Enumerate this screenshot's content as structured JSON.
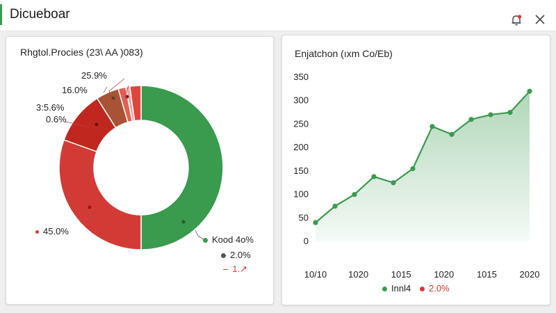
{
  "window": {
    "title": "Dicueboar",
    "accent_color": "#3a9a4e"
  },
  "toolbar": {
    "bell_icon": "bell-icon",
    "close_icon": "close-icon"
  },
  "donut_card": {
    "title": "Rhgtol.Procies (23\\ AA )083)",
    "labels": [
      "25.9%",
      "16.0%",
      "3:5.6%",
      "0.6%",
      "45.0%"
    ],
    "legend": [
      {
        "label": "Kood 4o%",
        "color": "#3a9a4e"
      },
      {
        "label": "2.0%",
        "color": "#555555"
      },
      {
        "label": "1.",
        "color": "#d23b35",
        "arrow": "↗"
      }
    ]
  },
  "line_card": {
    "title": "Enjatchon (ıxm Co/Eb)",
    "legend": [
      {
        "label": "Innl4",
        "color": "#3a9a4e"
      },
      {
        "label": "2.0%",
        "color": "#d23b35"
      }
    ]
  },
  "chart_data": [
    {
      "type": "pie",
      "title": "Rhgtol.Procies (23\\ AA )083)",
      "slices": [
        {
          "label": "Kood 4o%",
          "value": 50.0,
          "color": "#3a9a4e"
        },
        {
          "label": "45.0%",
          "value": 30.5,
          "color": "#d23b35"
        },
        {
          "label": "3:5.6%",
          "value": 10.5,
          "color": "#c0281f"
        },
        {
          "label": "16.0%",
          "value": 4.5,
          "color": "#a85336"
        },
        {
          "label": "25.9%",
          "value": 1.5,
          "color": "#df6055"
        },
        {
          "label": "0.6%",
          "value": 0.8,
          "color": "#f0a6a3"
        },
        {
          "label": "",
          "value": 2.2,
          "color": "#e0453d"
        }
      ]
    },
    {
      "type": "area",
      "title": "Enjatchon (ıxm Co/Eb)",
      "x_tick_labels": [
        "10/10",
        "1020",
        "1015",
        "1020",
        "1015",
        "2020"
      ],
      "y_ticks": [
        0,
        50,
        100,
        150,
        200,
        250,
        300,
        350
      ],
      "ylim": [
        0,
        350
      ],
      "grid": false,
      "series": [
        {
          "color": "#3a9a4e",
          "values": [
            40,
            75,
            100,
            138,
            125,
            155,
            245,
            228,
            260,
            270,
            275,
            320
          ]
        }
      ]
    }
  ]
}
